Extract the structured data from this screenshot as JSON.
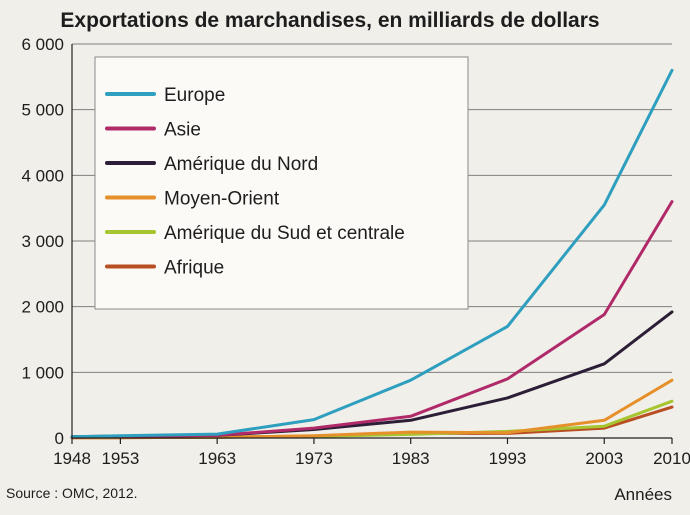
{
  "chart_data": {
    "type": "line",
    "title": "Exportations de marchandises, en milliards de dollars",
    "xlabel": "Années",
    "ylabel": "",
    "x": [
      1948,
      1953,
      1963,
      1973,
      1983,
      1993,
      2003,
      2010
    ],
    "xticks": [
      "1948",
      "1953",
      "1963",
      "1973",
      "1983",
      "1993",
      "2003",
      "2010"
    ],
    "yticks": [
      0,
      1000,
      2000,
      3000,
      4000,
      5000,
      6000
    ],
    "ytick_labels": [
      "0",
      "1 000",
      "2 000",
      "3 000",
      "4 000",
      "5 000",
      "6 000"
    ],
    "xlim": [
      1948,
      2010
    ],
    "ylim": [
      0,
      6000
    ],
    "grid": "horizontal",
    "legend_position": "top-left",
    "series": [
      {
        "name": "Europe",
        "color": "#2e9fbf",
        "values": [
          20,
          35,
          60,
          280,
          880,
          1700,
          3550,
          5600
        ]
      },
      {
        "name": "Asie",
        "color": "#b02a6a",
        "values": [
          10,
          20,
          40,
          150,
          330,
          900,
          1880,
          3600
        ]
      },
      {
        "name": "Amérique du Nord",
        "color": "#2b1e36",
        "values": [
          20,
          30,
          40,
          130,
          270,
          610,
          1130,
          1920
        ]
      },
      {
        "name": "Moyen-Orient",
        "color": "#e6902c",
        "values": [
          5,
          5,
          10,
          35,
          90,
          80,
          270,
          880
        ]
      },
      {
        "name": "Amérique du Sud et centrale",
        "color": "#a6c530",
        "values": [
          8,
          8,
          10,
          25,
          55,
          100,
          180,
          560
        ]
      },
      {
        "name": "Afrique",
        "color": "#b84e22",
        "values": [
          5,
          5,
          10,
          30,
          70,
          70,
          150,
          470
        ]
      }
    ],
    "source": "Source : OMC, 2012."
  }
}
